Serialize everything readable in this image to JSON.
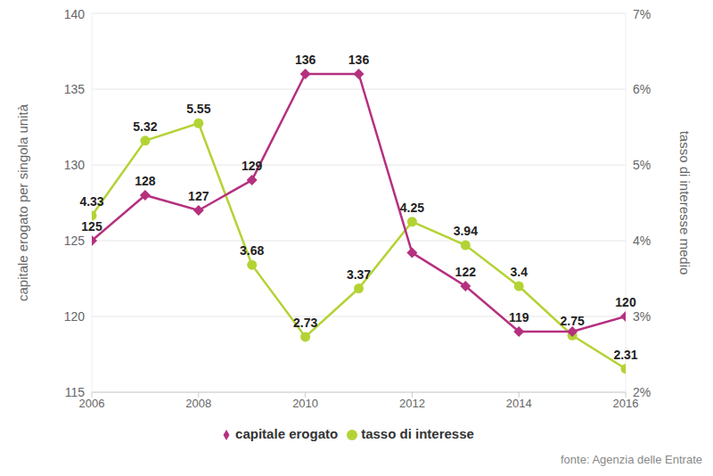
{
  "chart_data": {
    "type": "line",
    "x": [
      2006,
      2007,
      2008,
      2009,
      2010,
      2011,
      2012,
      2013,
      2014,
      2015,
      2016
    ],
    "xlim": [
      2006,
      2016
    ],
    "xticks": [
      2006,
      2008,
      2010,
      2012,
      2014,
      2016
    ],
    "ylabel": "capitale erogato per singola unità",
    "ylim": [
      115,
      140
    ],
    "yticks": [
      115,
      120,
      125,
      130,
      135,
      140
    ],
    "y2label": "tasso di interesse medio",
    "y2lim": [
      2,
      7
    ],
    "y2ticks": [
      {
        "value": 2,
        "label": "2%"
      },
      {
        "value": 3,
        "label": "3%"
      },
      {
        "value": 4,
        "label": "4%"
      },
      {
        "value": 5,
        "label": "5%"
      },
      {
        "value": 6,
        "label": "6%"
      },
      {
        "value": 7,
        "label": "7%"
      }
    ],
    "series": [
      {
        "name": "tasso di interesse",
        "color": "#b3d334",
        "marker": "circle",
        "axis": "y2",
        "values": [
          4.33,
          5.32,
          5.55,
          3.68,
          2.73,
          3.37,
          4.25,
          3.94,
          3.4,
          2.75,
          2.31
        ]
      },
      {
        "name": "capitale erogato",
        "color": "#b5307f",
        "marker": "diamond",
        "values": [
          125,
          128,
          127,
          129,
          136,
          136,
          124.2,
          122,
          119,
          119,
          120
        ],
        "value_labels": [
          "125",
          "128",
          "127",
          "129",
          "136",
          "136",
          null,
          "122",
          "119",
          null,
          "120"
        ]
      }
    ],
    "data_labels": true,
    "grid": true,
    "legend": "bottom",
    "annotation": "fonte: Agenzia delle Entrate"
  }
}
